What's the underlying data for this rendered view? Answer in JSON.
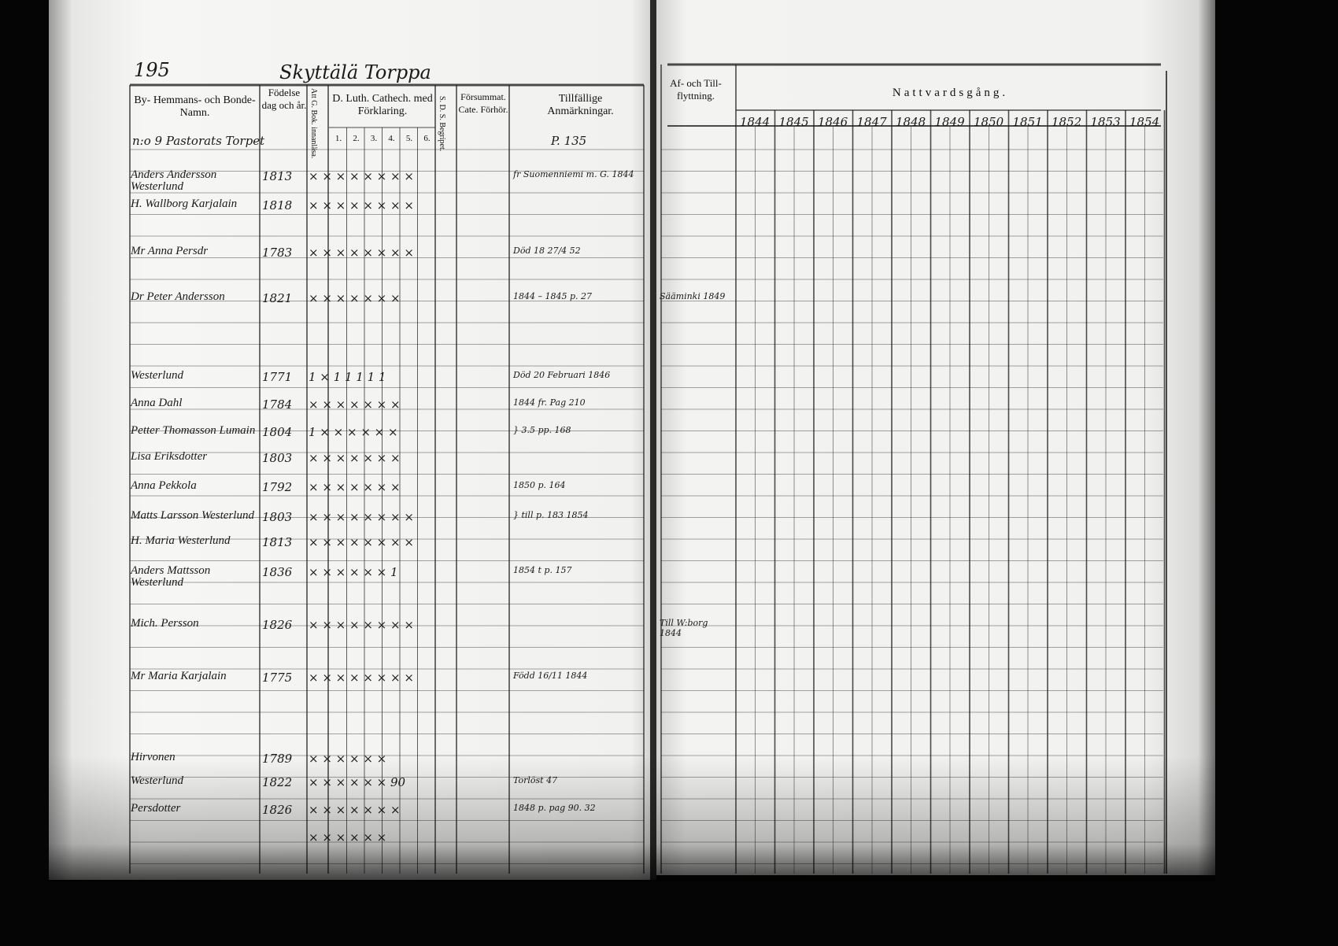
{
  "page_number": "195",
  "page_heading": "Skyttälä Torppa",
  "headers": {
    "name": "By- Hemmans- och Bonde-Namn.",
    "birth": "Födelse dag och år.",
    "book": "Att G. Bok. innanläsa.",
    "catechism": "D. Luth. Cathech. med Förklaring.",
    "catechism_sub": [
      "1.",
      "2.",
      "3.",
      "4.",
      "5.",
      "6."
    ],
    "sds": "S. D. S. Begripet.",
    "missed": "Försummat. Cate. Förhör.",
    "remarks": "Tillfällige Anmärkningar.",
    "moving": "Af- och Till- flyttning.",
    "communion": "Nattvardsgång.",
    "years": [
      "1844",
      "1845",
      "1846",
      "1847",
      "1848",
      "1849",
      "1850",
      "1851",
      "1852",
      "1853",
      "1854"
    ]
  },
  "section_label": "n:o 9 Pastorats Torpet",
  "remarks_page_ref": "P. 135",
  "entries": [
    {
      "name": "Anders Andersson Westerlund",
      "birth": "1813",
      "marks": "× × × × × × × ×",
      "remark": "fr Suomenniemi m. G. 1844"
    },
    {
      "name": "H. Wallborg Karjalain",
      "birth": "1818",
      "marks": "× × × × × × × ×",
      "remark": ""
    },
    {
      "name": "Mr Anna Persdr",
      "birth": "1783",
      "marks": "× × × × × × × ×",
      "remark": "Död 18 27/4 52"
    },
    {
      "name": "Dr Peter Andersson",
      "birth": "1821",
      "marks": "× × × × × × ×",
      "remark": "1844 – 1845 p. 27",
      "moving": "Sääminki 1849"
    },
    {
      "name": "Westerlund",
      "birth": "1771",
      "marks": "1 × 1 1 1 1 1",
      "remark": "Död 20 Februari 1846"
    },
    {
      "name": "Anna Dahl",
      "birth": "1784",
      "marks": "× × × × × × ×",
      "remark": "1844 fr. Pag 210"
    },
    {
      "name": "Petter Thomasson Lumain",
      "birth": "1804",
      "marks": "1 × × × × × ×",
      "remark": "} 3.5 pp. 168"
    },
    {
      "name": "Lisa Eriksdotter",
      "birth": "1803",
      "marks": "× × × × × × ×",
      "remark": ""
    },
    {
      "name": "Anna Pekkola",
      "birth": "1792",
      "marks": "× × × × × × ×",
      "remark": "1850 p. 164"
    },
    {
      "name": "Matts Larsson Westerlund",
      "birth": "1803",
      "marks": "× × × × × × × ×",
      "remark": "} till p. 183 1854"
    },
    {
      "name": "H. Maria Westerlund",
      "birth": "1813",
      "marks": "× × × × × × × ×",
      "remark": ""
    },
    {
      "name": "Anders Mattsson Westerlund",
      "birth": "1836",
      "marks": "× × × × × × 1",
      "remark": "1854 t p. 157"
    },
    {
      "name": "Mich. Persson",
      "birth": "1826",
      "marks": "× × × × × × × ×",
      "remark": "",
      "moving": "Till W:borg 1844"
    },
    {
      "name": "Mr Maria Karjalain",
      "birth": "1775",
      "marks": "× × × × × × × ×",
      "remark": "Född 16/11 1844"
    },
    {
      "name": "Hirvonen",
      "birth": "1789",
      "marks": "× × × × × ×",
      "remark": ""
    },
    {
      "name": "Westerlund",
      "birth": "1822",
      "marks": "× × × × × × 90",
      "remark": "Torlöst 47"
    },
    {
      "name": "Persdotter",
      "birth": "1826",
      "marks": "× × × × × × ×",
      "remark": "1848 p. pag 90. 32"
    },
    {
      "name": "",
      "birth": "",
      "marks": "× × × × × ×",
      "remark": ""
    }
  ],
  "colors": {
    "ink": "#111111",
    "paper": "#f2f2f0",
    "background": "#050505"
  }
}
